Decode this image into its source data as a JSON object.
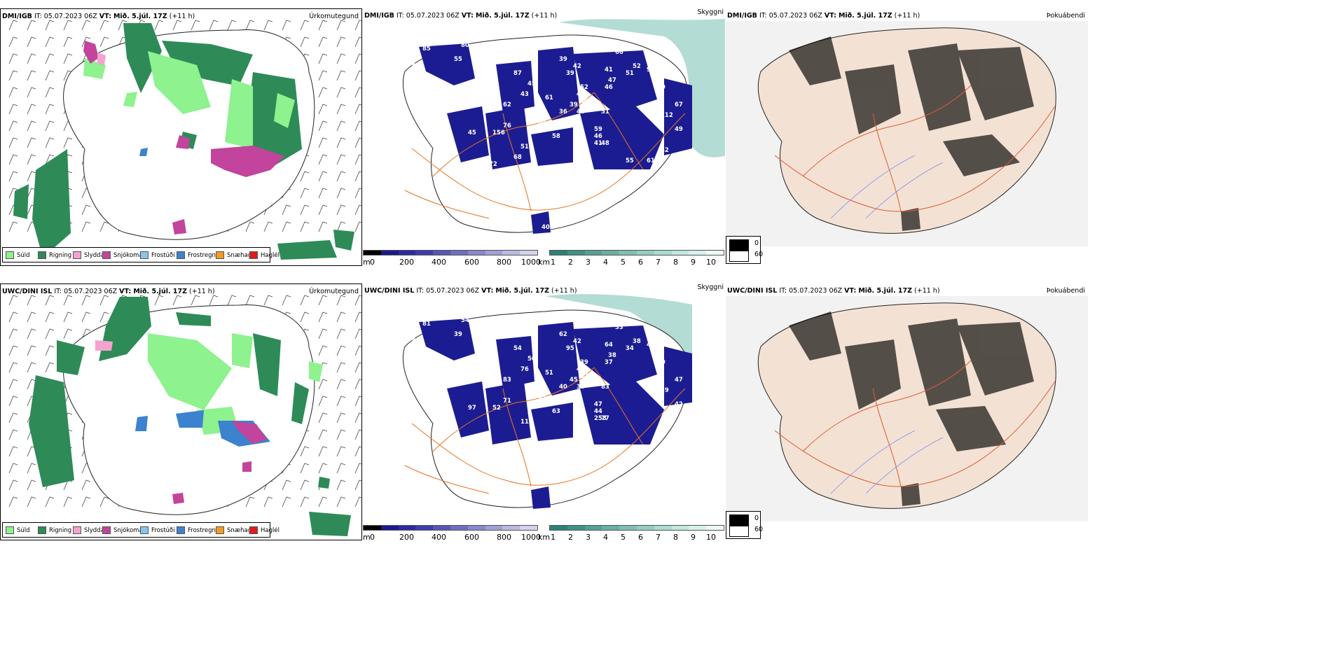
{
  "rows": [
    {
      "model": "DMI/IGB",
      "it_label": "IT:",
      "it_value": "05.07.2023 06Z",
      "vt_label": "VT:",
      "vt_value": "Mið. 5.júl. 17Z",
      "lead": "(+11 h)",
      "precip_title": "Úrkomutegund",
      "vis_title": "Skyggni",
      "fog_title": "Þokuábendi",
      "vis_numbers": [
        "85",
        "80",
        "55",
        "69",
        "87",
        "45",
        "43",
        "39",
        "42",
        "66",
        "51",
        "52",
        "98",
        "41",
        "39",
        "47",
        "46",
        "40",
        "52",
        "61",
        "42",
        "40",
        "58",
        "62",
        "39",
        "46",
        "51",
        "36",
        "76",
        "54",
        "59",
        "46",
        "112",
        "67",
        "49",
        "45",
        "156",
        "58",
        "48",
        "41",
        "51",
        "45",
        "42",
        "61",
        "55",
        "63",
        "49",
        "68",
        "72",
        "55",
        "40"
      ]
    },
    {
      "model": "UWC/DINI ISL",
      "it_label": "IT:",
      "it_value": "05.07.2023 06Z",
      "vt_label": "VT:",
      "vt_value": "Mið. 5.júl. 17Z",
      "lead": "(+11 h)",
      "precip_title": "Úrkomutegund",
      "vis_title": "Skyggni",
      "fog_title": "Þokuábendi",
      "vis_numbers": [
        "81",
        "54",
        "39",
        "56",
        "54",
        "50",
        "76",
        "62",
        "42",
        "33",
        "34",
        "38",
        "49",
        "64",
        "95",
        "38",
        "37",
        "40",
        "39",
        "51",
        "44",
        "47",
        "72",
        "83",
        "45",
        "38",
        "83",
        "40",
        "71",
        "45",
        "47",
        "44",
        "39",
        "47",
        "42",
        "97",
        "52",
        "63",
        "77",
        "258",
        "119",
        "114",
        "46"
      ]
    }
  ],
  "precip_legend": [
    {
      "label": "Súld",
      "color": "#8ef28e"
    },
    {
      "label": "Rigning",
      "color": "#2e8b57"
    },
    {
      "label": "Slydda",
      "color": "#f4a3cf"
    },
    {
      "label": "Snjókoma",
      "color": "#c2449c"
    },
    {
      "label": "Frostúði",
      "color": "#87c5f0"
    },
    {
      "label": "Frostregn",
      "color": "#3c82cf"
    },
    {
      "label": "Snæhagl",
      "color": "#f29b24"
    },
    {
      "label": "Haglél",
      "color": "#e01b1b"
    }
  ],
  "terrain_bar": {
    "unit": "m",
    "ticks": [
      "0",
      "200",
      "400",
      "600",
      "800",
      "1000"
    ],
    "colors": [
      "#000000",
      "#1a1a8c",
      "#2b2ba0",
      "#3d3daa",
      "#5656b5",
      "#6f6fc0",
      "#8888cb",
      "#a1a1d6",
      "#babae1",
      "#d3d3ec"
    ]
  },
  "vis_bar": {
    "unit": "km",
    "ticks": [
      "1",
      "2",
      "3",
      "4",
      "5",
      "6",
      "7",
      "8",
      "9",
      "10"
    ],
    "colors": [
      "#2a8277",
      "#3f9186",
      "#55a095",
      "#6aafa4",
      "#80beb3",
      "#95cdc2",
      "#abdcd1",
      "#c0e8df",
      "#d6f2ec",
      "#ebfaf6"
    ]
  },
  "fog_legend": [
    {
      "label": "0",
      "color": "#000000"
    },
    {
      "label": "60",
      "color": "#ffffff"
    }
  ],
  "colors": {
    "rain_green": "#2e8b57",
    "drizzle_green": "#8ef28e",
    "snow_magenta": "#c2449c",
    "freezing_blue": "#3c82cf",
    "terrain_navy": "#1c1c92",
    "road_orange": "#e8741f",
    "land_beige": "#f3e2d4"
  }
}
